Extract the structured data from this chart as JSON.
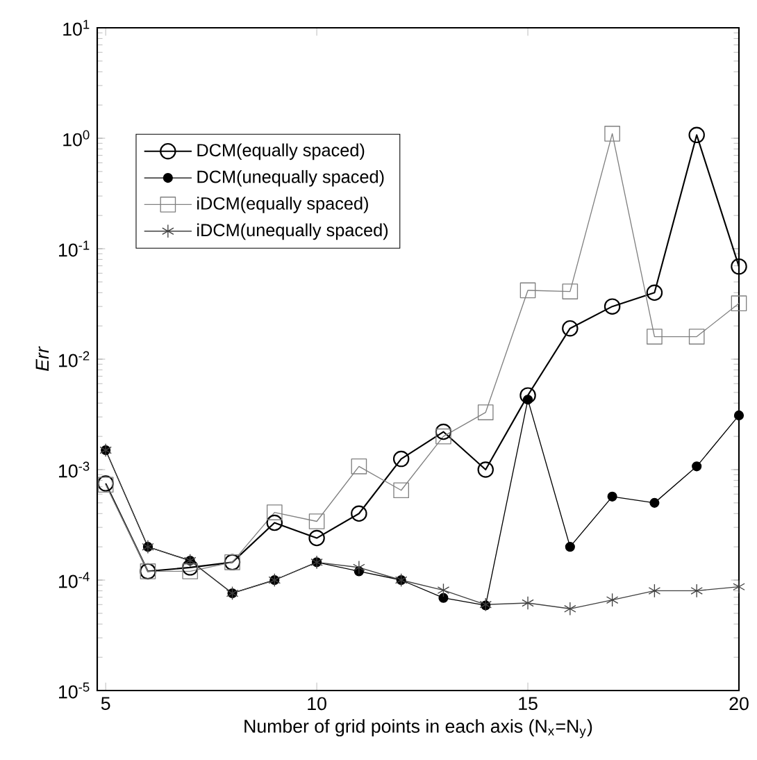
{
  "chart_data": {
    "type": "line",
    "xlabel": "Number of grid points in each axis (N$_{x}$=N$_{y}$)",
    "ylabel": "Err",
    "x": [
      5,
      6,
      7,
      8,
      9,
      10,
      11,
      12,
      13,
      14,
      15,
      16,
      17,
      18,
      19,
      20
    ],
    "series": [
      {
        "name": "DCM(equally spaced)",
        "color": "#000000",
        "marker": "circle",
        "values": [
          0.00075,
          0.00012,
          0.00013,
          0.000145,
          0.00033,
          0.00024,
          0.0004,
          0.00125,
          0.0022,
          0.001,
          0.0047,
          0.019,
          0.03,
          0.04,
          1.07,
          0.069
        ]
      },
      {
        "name": "DCM(unequally spaced)",
        "color": "#000000",
        "marker": "circle",
        "values": [
          0.0015,
          0.0002,
          0.00015,
          7.6e-05,
          0.0001,
          0.000145,
          0.00012,
          0.0001,
          6.9e-05,
          5.9e-05,
          0.0043,
          0.0002,
          0.00057,
          0.0005,
          0.00107,
          0.0031
        ]
      },
      {
        "name": "iDCM(equally spaced)",
        "color": "#808080",
        "marker": "square",
        "values": [
          0.00073,
          0.00012,
          0.00012,
          0.000145,
          0.00041,
          0.00034,
          0.00107,
          0.00065,
          0.002,
          0.0033,
          0.042,
          0.041,
          1.1,
          0.016,
          0.016,
          0.032
        ]
      },
      {
        "name": "iDCM(unequally spaced)",
        "color": "#404040",
        "marker": "cross",
        "values": [
          0.0015,
          0.0002,
          0.00015,
          7.6e-05,
          0.0001,
          0.000145,
          0.00013,
          0.0001,
          8.1e-05,
          6e-05,
          6.2e-05,
          5.5e-05,
          6.6e-05,
          8e-05,
          8e-05,
          8.7e-05
        ]
      }
    ],
    "xlim": [
      4.8,
      20
    ],
    "ylim": [
      1e-05,
      10
    ],
    "xticks": [
      5,
      10,
      15,
      20
    ],
    "yticks": [
      {
        "value": 1e-05,
        "label": "10$^{-5}$"
      },
      {
        "value": 0.0001,
        "label": "10$^{-4}$"
      },
      {
        "value": 0.001,
        "label": "10$^{-3}$"
      },
      {
        "value": 0.01,
        "label": "10$^{-2}$"
      },
      {
        "value": 0.1,
        "label": "10$^{-1}$"
      },
      {
        "value": 1,
        "label": "10$^{0}$"
      },
      {
        "value": 10,
        "label": "10$^{1}$"
      }
    ],
    "log": "y",
    "legend": "top left",
    "line_style": "solid",
    "grid": false
  }
}
